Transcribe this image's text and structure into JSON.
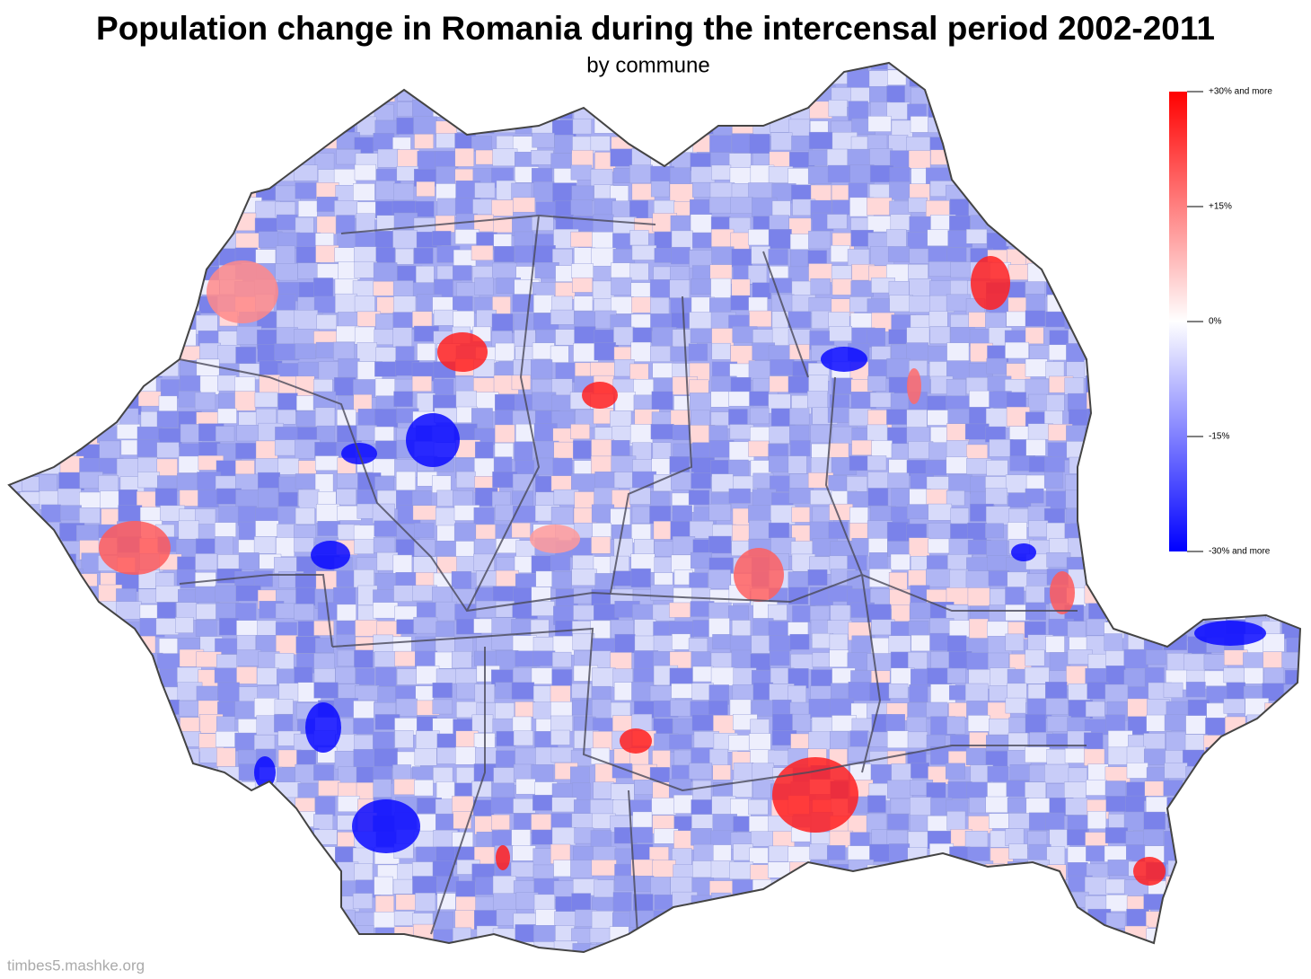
{
  "header": {
    "title": "Population change in Romania during the intercensal period 2002-2011",
    "subtitle": "by commune"
  },
  "legend": {
    "ticks": [
      {
        "value": 30,
        "label": "+30% and more"
      },
      {
        "value": 15,
        "label": "+15%"
      },
      {
        "value": 0,
        "label": "0%"
      },
      {
        "value": -15,
        "label": "-15%"
      },
      {
        "value": -30,
        "label": "-30% and more"
      }
    ]
  },
  "footer": {
    "watermark": "timbes5.mashke.org"
  }
}
